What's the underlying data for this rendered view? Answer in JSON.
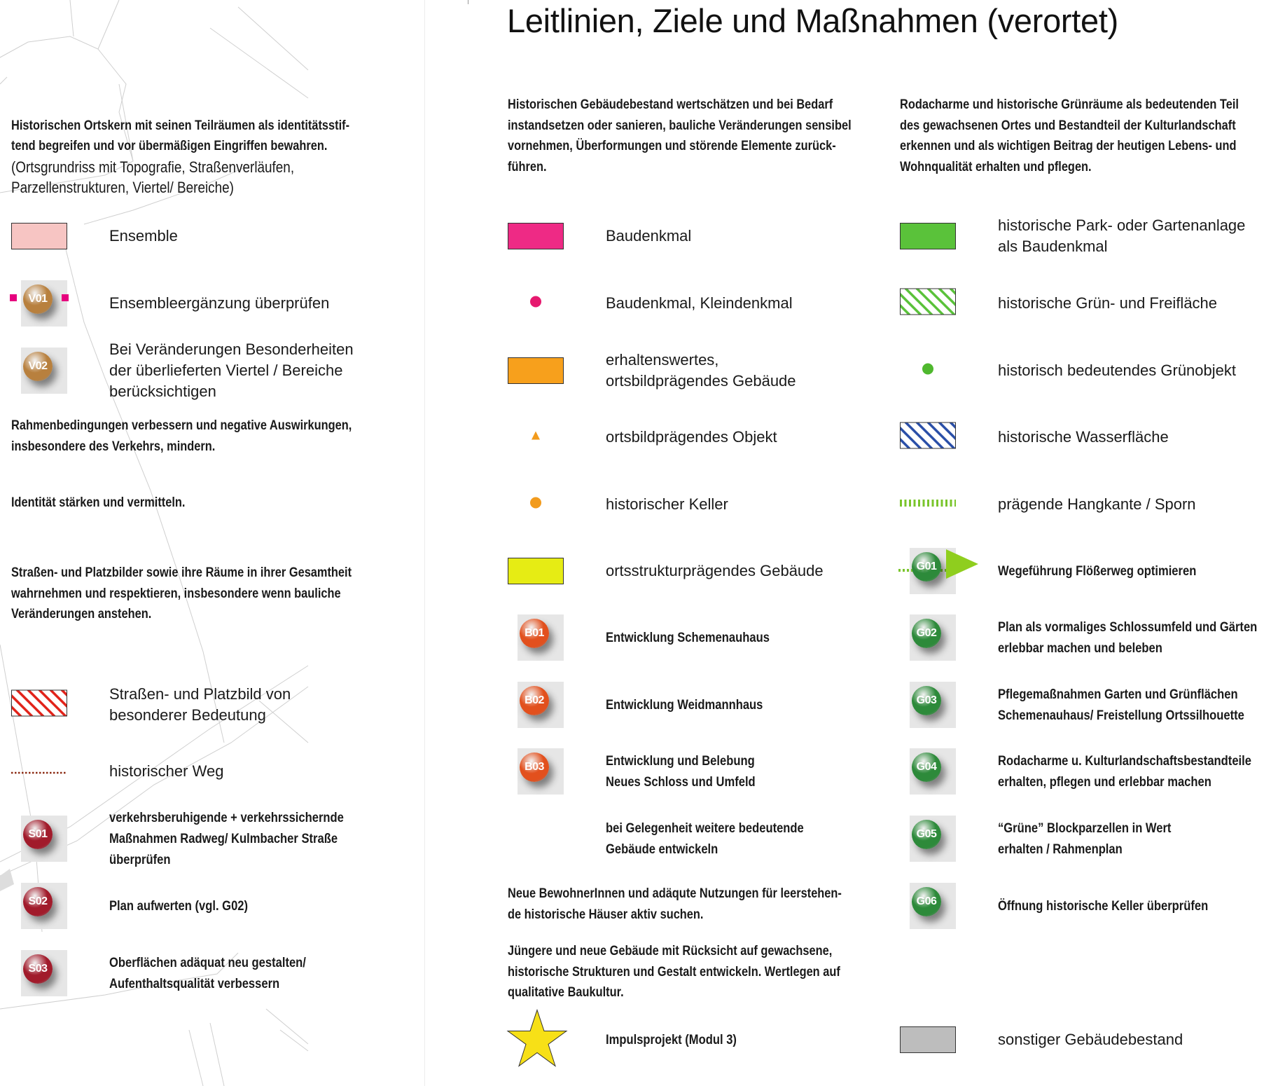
{
  "title": "Leitlinien, Ziele und Maßnahmen (verortet)",
  "colors": {
    "text": "#1a1a1a",
    "V": "#b8803e",
    "B": "#e2501d",
    "S": "#a11b2b",
    "G": "#2d8a3a",
    "magenta": "#e6007e"
  },
  "left": {
    "heading_1": "Historischen Ortskern mit seinen Teilräumen als identitätsstif-\ntend begreifen und vor übermäßigen Eingriffen bewahren.",
    "heading_1_note": "(Ortsgrundriss mit Topografie, Straßenverläufen,\nParzellenstrukturen, Viertel/ Bereiche)",
    "heading_2": "Rahmenbedingungen verbessern und negative Auswirkungen,\ninsbesondere des Verkehrs, mindern.",
    "heading_3": "Identität stärken und vermitteln.",
    "heading_4": "Straßen- und Platzbilder sowie ihre Räume in ihrer Gesamtheit\nwahrnehmen und respektieren, insbesondere wenn bauliche\nVeränderungen anstehen.",
    "items": [
      {
        "icon": "swatch",
        "name": "ensemble-swatch-icon",
        "color": "#f7c5c3",
        "label": "Ensemble"
      },
      {
        "icon": "badge",
        "name": "v01-badge-icon",
        "code": "V01",
        "group": "V",
        "extra": "magenta-squares",
        "label": "Ensembleergänzung überprüfen"
      },
      {
        "icon": "badge",
        "name": "v02-badge-icon",
        "code": "V02",
        "group": "V",
        "label": "Bei Veränderungen Besonderheiten\nder überlieferten Viertel / Bereiche\nberücksichtigen"
      },
      {
        "icon": "hatch",
        "name": "red-hatch-swatch-icon",
        "color": "#e2231a",
        "label": "Straßen- und Platzbild von\nbesonderer Bedeutung"
      },
      {
        "icon": "dotline",
        "name": "historic-path-line-icon",
        "color": "#8b2a12",
        "label": "historischer Weg"
      },
      {
        "icon": "badge",
        "name": "s01-badge-icon",
        "code": "S01",
        "group": "S",
        "bold": true,
        "label": "verkehrsberuhigende + verkehrssichernde\nMaßnahmen Radweg/ Kulmbacher Straße\nüberprüfen"
      },
      {
        "icon": "badge",
        "name": "s02-badge-icon",
        "code": "S02",
        "group": "S",
        "bold": true,
        "label": "Plan aufwerten (vgl. G02)"
      },
      {
        "icon": "badge",
        "name": "s03-badge-icon",
        "code": "S03",
        "group": "S",
        "bold": true,
        "label": "Oberflächen adäquat neu gestalten/\nAufenthaltsqualität verbessern"
      }
    ]
  },
  "middle": {
    "heading": "Historischen Gebäudebestand wertschätzen  und bei Bedarf\ninstandsetzen oder sanieren, bauliche Veränderungen sensibel\nvornehmen, Überformungen und störende Elemente zurück-\nführen.",
    "items": [
      {
        "icon": "swatch",
        "name": "baudenkmal-swatch-icon",
        "color": "#ee2a85",
        "label": "Baudenkmal"
      },
      {
        "icon": "dot",
        "name": "magenta-dot-icon",
        "color": "#e6196f",
        "label": "Baudenkmal, Kleindenkmal"
      },
      {
        "icon": "swatch",
        "name": "orange-swatch-icon",
        "color": "#f7a01c",
        "label": "erhaltenswertes,\nortsbildprägendes Gebäude"
      },
      {
        "icon": "triangle",
        "name": "orange-triangle-icon",
        "color": "#f29b1d",
        "label": "ortsbildprägendes Objekt"
      },
      {
        "icon": "dot",
        "name": "orange-dot-icon",
        "color": "#f29b1d",
        "label": "historischer Keller"
      },
      {
        "icon": "swatch",
        "name": "yellow-swatch-icon",
        "color": "#e6ec14",
        "label": "ortsstrukturprägendes Gebäude"
      },
      {
        "icon": "badge",
        "name": "b01-badge-icon",
        "code": "B01",
        "group": "B",
        "bold": true,
        "label": "Entwicklung Schemenauhaus"
      },
      {
        "icon": "badge",
        "name": "b02-badge-icon",
        "code": "B02",
        "group": "B",
        "bold": true,
        "label": "Entwicklung Weidmannhaus"
      },
      {
        "icon": "badge",
        "name": "b03-badge-icon",
        "code": "B03",
        "group": "B",
        "bold": true,
        "label": "Entwicklung und Belebung\nNeues Schloss und Umfeld"
      },
      {
        "icon": "none",
        "name": "blank-icon",
        "bold": true,
        "label": "bei Gelegenheit weitere bedeutende\nGebäude entwickeln"
      }
    ],
    "text_1": "Neue BewohnerInnen und adäqute Nutzungen für leerstehen-\nde historische Häuser aktiv suchen.",
    "text_2": "Jüngere und neue Gebäude mit Rücksicht auf gewachsene,\nhistorische Strukturen und Gestalt entwickeln. Wertlegen auf\nqualitative Baukultur.",
    "star_item": {
      "icon": "star",
      "name": "star-icon",
      "color": "#f7e017",
      "bold": true,
      "label": "Impulsprojekt (Modul 3)"
    }
  },
  "right": {
    "heading": "Rodacharme und historische Grünräume als bedeutenden Teil\ndes gewachsenen Ortes und Bestandteil der Kulturlandschaft\nerkennen und als wichtigen Beitrag der heutigen Lebens- und\nWohnqualität erhalten und pflegen.",
    "items": [
      {
        "icon": "swatch",
        "name": "green-swatch-icon",
        "color": "#5ac23a",
        "label": "historische Park- oder Gartenanlage\nals Baudenkmal"
      },
      {
        "icon": "hatch",
        "name": "green-hatch-swatch-icon",
        "color": "#5ac23a",
        "label": "historische Grün- und Freifläche"
      },
      {
        "icon": "dot",
        "name": "green-dot-icon",
        "color": "#4fb82e",
        "label": "historisch bedeutendes Grünobjekt"
      },
      {
        "icon": "hatch",
        "name": "blue-hatch-swatch-icon",
        "color": "#2a4fa8",
        "label": "historische Wasserfläche"
      },
      {
        "icon": "greenline",
        "name": "slope-edge-line-icon",
        "color": "#7ac52c",
        "label": "prägende Hangkante / Sporn"
      },
      {
        "icon": "badge",
        "name": "g01-badge-icon",
        "code": "G01",
        "group": "G",
        "extra": "arrow",
        "bold": true,
        "label": "Wegeführung Flößerweg optimieren"
      },
      {
        "icon": "badge",
        "name": "g02-badge-icon",
        "code": "G02",
        "group": "G",
        "bold": true,
        "label": "Plan als vormaliges Schlossumfeld und Gärten\nerlebbar machen und beleben"
      },
      {
        "icon": "badge",
        "name": "g03-badge-icon",
        "code": "G03",
        "group": "G",
        "bold": true,
        "label": "Pflegemaßnahmen Garten und Grünflächen\nSchemenauhaus/ Freistellung Ortssilhouette"
      },
      {
        "icon": "badge",
        "name": "g04-badge-icon",
        "code": "G04",
        "group": "G",
        "bold": true,
        "label": "Rodacharme u. Kulturlandschaftsbestandteile\nerhalten, pflegen und erlebbar machen"
      },
      {
        "icon": "badge",
        "name": "g05-badge-icon",
        "code": "G05",
        "group": "G",
        "bold": true,
        "label": "“Grüne” Blockparzellen in Wert\nerhalten / Rahmenplan"
      },
      {
        "icon": "badge",
        "name": "g06-badge-icon",
        "code": "G06",
        "group": "G",
        "bold": true,
        "label": "Öffnung historische Keller überprüfen"
      }
    ],
    "other_item": {
      "icon": "swatch",
      "name": "gray-swatch-icon",
      "color": "#bdbdbd",
      "label": "sonstiger Gebäudebestand"
    }
  }
}
